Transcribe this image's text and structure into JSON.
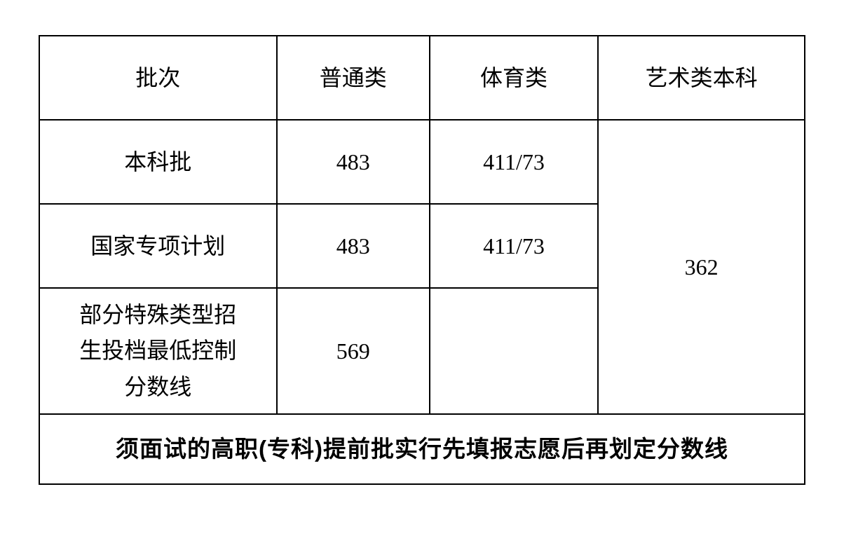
{
  "table": {
    "headers": {
      "batch": "批次",
      "general": "普通类",
      "sports": "体育类",
      "art": "艺术类本科"
    },
    "rows": [
      {
        "batch": "本科批",
        "general": "483",
        "sports": "411/73"
      },
      {
        "batch": "国家专项计划",
        "general": "483",
        "sports": "411/73"
      },
      {
        "batch": "部分特殊类型招生投档最低控制分数线",
        "general": "569",
        "sports": ""
      }
    ],
    "art_merged_value": "362",
    "footer_note": "须面试的高职(专科)提前批实行先填报志愿后再划定分数线",
    "styling": {
      "border_color": "#000000",
      "border_width": 2,
      "background_color": "#ffffff",
      "font_size_cell": 32,
      "font_size_footer": 33,
      "font_family_body": "SimSun",
      "font_family_footer": "SimHei",
      "footer_font_weight": "bold",
      "column_widths_percent": [
        31,
        20,
        22,
        27
      ],
      "header_row_height": 120,
      "data_row_height": 120,
      "special_row_height": 180,
      "footer_row_height": 100
    }
  }
}
